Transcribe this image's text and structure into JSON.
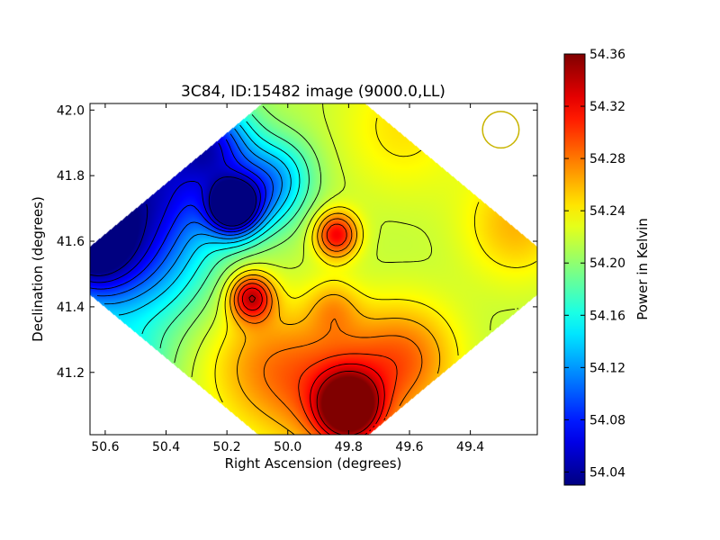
{
  "chart_data": {
    "type": "heatmap",
    "title": "3C84, ID:15482 image (9000.0,LL)",
    "xlabel": "Right Ascension (degrees)",
    "ylabel": "Declination (degrees)",
    "xlim": [
      50.65,
      49.18
    ],
    "ylim": [
      41.01,
      42.02
    ],
    "x_ticks": [
      50.6,
      50.4,
      50.2,
      50.0,
      49.8,
      49.6,
      49.4
    ],
    "x_tick_labels": [
      "50.6",
      "50.4",
      "50.2",
      "50.0",
      "49.8",
      "49.6",
      "49.4"
    ],
    "y_ticks": [
      41.2,
      41.4,
      41.6,
      41.8,
      42.0
    ],
    "y_tick_labels": [
      "41.2",
      "41.4",
      "41.6",
      "41.8",
      "42.0"
    ],
    "colorbar": {
      "label": "Power in Kelvin",
      "range": [
        54.03,
        54.36
      ],
      "ticks": [
        54.04,
        54.08,
        54.12,
        54.16,
        54.2,
        54.24,
        54.28,
        54.32,
        54.36
      ],
      "tick_labels": [
        "54.04",
        "54.08",
        "54.12",
        "54.16",
        "54.20",
        "54.24",
        "54.28",
        "54.32",
        "54.36"
      ],
      "colormap": "jet"
    },
    "coverage": "diamond",
    "grid": false,
    "contours": true,
    "beam_marker": {
      "ra": 49.3,
      "dec": 41.94,
      "radius_deg": 0.06,
      "color": "#c8b400"
    },
    "baseline": 54.215,
    "features": [
      {
        "ra": 50.66,
        "dec": 41.58,
        "peak": 54.035,
        "width": 0.12
      },
      {
        "ra": 50.44,
        "dec": 41.78,
        "peak": 54.07,
        "width": 0.16
      },
      {
        "ra": 50.18,
        "dec": 41.7,
        "peak": 54.035,
        "width": 0.06
      },
      {
        "ra": 50.25,
        "dec": 41.9,
        "peak": 54.11,
        "width": 0.09
      },
      {
        "ra": 50.08,
        "dec": 41.76,
        "peak": 54.13,
        "width": 0.09
      },
      {
        "ra": 50.45,
        "dec": 41.5,
        "peak": 54.16,
        "width": 0.14
      },
      {
        "ra": 50.55,
        "dec": 41.2,
        "peak": 54.15,
        "width": 0.1
      },
      {
        "ra": 50.0,
        "dec": 41.82,
        "peak": 54.19,
        "width": 0.08
      },
      {
        "ra": 50.12,
        "dec": 41.43,
        "peak": 54.33,
        "width": 0.05
      },
      {
        "ra": 49.84,
        "dec": 41.62,
        "peak": 54.32,
        "width": 0.05
      },
      {
        "ra": 49.8,
        "dec": 41.09,
        "peak": 54.355,
        "width": 0.07
      },
      {
        "ra": 49.82,
        "dec": 41.14,
        "peak": 54.29,
        "width": 0.15
      },
      {
        "ra": 50.08,
        "dec": 41.22,
        "peak": 54.265,
        "width": 0.14
      },
      {
        "ra": 49.6,
        "dec": 41.25,
        "peak": 54.27,
        "width": 0.12
      },
      {
        "ra": 49.25,
        "dec": 41.65,
        "peak": 54.26,
        "width": 0.12
      },
      {
        "ra": 49.62,
        "dec": 41.95,
        "peak": 54.245,
        "width": 0.15
      },
      {
        "ra": 49.85,
        "dec": 41.4,
        "peak": 54.25,
        "width": 0.06
      }
    ]
  }
}
